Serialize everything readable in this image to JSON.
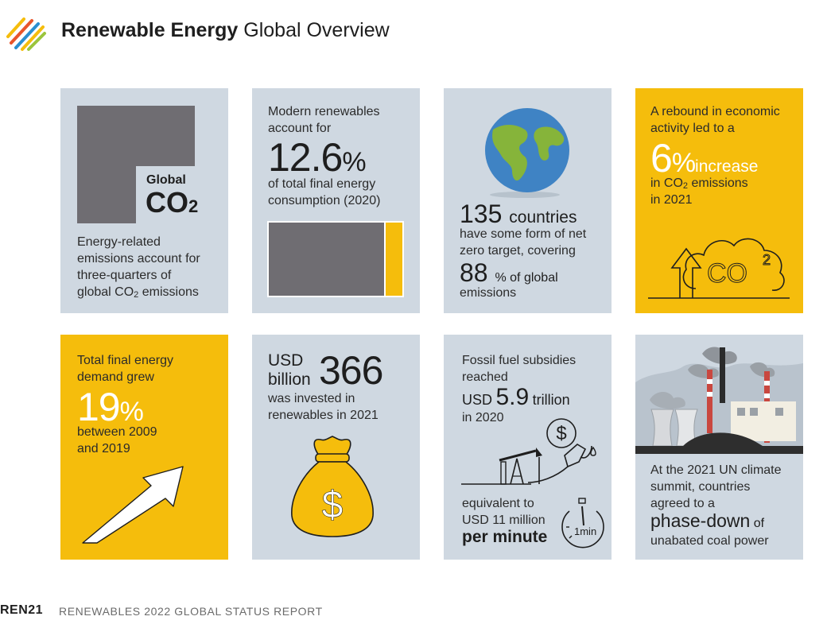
{
  "header": {
    "title_bold": "Renewable Energy",
    "title_rest": " Global Overview"
  },
  "cards": {
    "co2": {
      "label_global": "Global",
      "label_co2": "CO",
      "label_co2_sub": "2",
      "line1": "Energy-related",
      "line2": "emissions account for",
      "line3": "three-quarters of",
      "line4_pre": "global CO",
      "line4_sub": "2",
      "line4_post": " emissions"
    },
    "modern": {
      "line1": "Modern renewables",
      "line2": "account for",
      "number": "12.6",
      "unit": "%",
      "line3": "of total final energy",
      "line4": "consumption (2020)",
      "share_percent": 12.6
    },
    "countries": {
      "number": "135",
      "number_label": "countries",
      "line1": "have some form of net",
      "line2": "zero target, covering",
      "percent": "88",
      "percent_label": "% of global",
      "line3": "emissions"
    },
    "rebound": {
      "line1": "A rebound in economic",
      "line2": "activity led to a",
      "number": "6",
      "unit": "%",
      "increase": "increase",
      "line3_pre": "in CO",
      "line3_sub": "2",
      "line3_post": " emissions",
      "line4": "in 2021",
      "cloud_text": "CO",
      "cloud_sup": "2"
    },
    "demand": {
      "line1": "Total final energy",
      "line2": "demand grew",
      "number": "19",
      "unit": "%",
      "line3": "between 2009",
      "line4": "and 2019"
    },
    "invest": {
      "currency": "USD",
      "scale": "billion",
      "number": "366",
      "line1": "was invested in",
      "line2": "renewables in 2021",
      "bag_symbol": "$"
    },
    "subsidies": {
      "line1": "Fossil fuel subsidies",
      "line2": "reached",
      "currency": "USD",
      "number": "5.9",
      "scale": "trillion",
      "line3": "in 2020",
      "line4": "equivalent to",
      "line5": "USD 11 million",
      "line6": "per minute",
      "coin_symbol": "$",
      "timer_label": "1min"
    },
    "coal": {
      "line1": "At the 2021 UN climate",
      "line2": "summit, countries",
      "line3": "agreed to a",
      "highlight": "phase-down",
      "highlight_post": "of",
      "line4": "unabated coal power"
    }
  },
  "footer": {
    "brand": "REN21",
    "report": "RENEWABLES 2022 GLOBAL STATUS REPORT"
  },
  "colors": {
    "grey_card": "#cfd8e1",
    "yellow_card": "#f5bd0c",
    "dark_grey": "#6f6d72",
    "text": "#2b2b2b"
  }
}
